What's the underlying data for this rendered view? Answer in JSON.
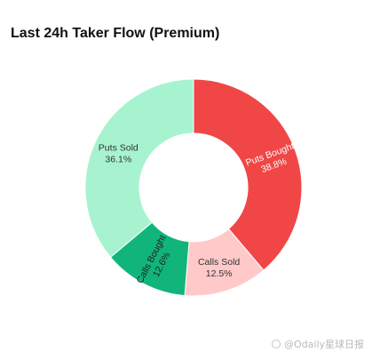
{
  "chart_data": {
    "type": "pie",
    "donut": true,
    "title": "Last 24h Taker Flow (Premium)",
    "slices": [
      {
        "label": "Puts Bought",
        "percent_label": "38.8%",
        "value": 38.8,
        "color": "#f04646",
        "text_color": "#ffffff",
        "rotate_label": true
      },
      {
        "label": "Calls Sold",
        "percent_label": "12.5%",
        "value": 12.5,
        "color": "#ffc9c9",
        "text_color": "#333333",
        "rotate_label": false
      },
      {
        "label": "Calls Bought",
        "percent_label": "12.6%",
        "value": 12.6,
        "color": "#11b57a",
        "text_color": "#222222",
        "rotate_label": true
      },
      {
        "label": "Puts Sold",
        "percent_label": "36.1%",
        "value": 36.1,
        "color": "#a7f3d0",
        "text_color": "#333333",
        "rotate_label": false
      }
    ],
    "start_angle": "top",
    "direction": "clockwise",
    "legend": "none"
  },
  "watermark": {
    "text": "@Odaily星球日报"
  }
}
